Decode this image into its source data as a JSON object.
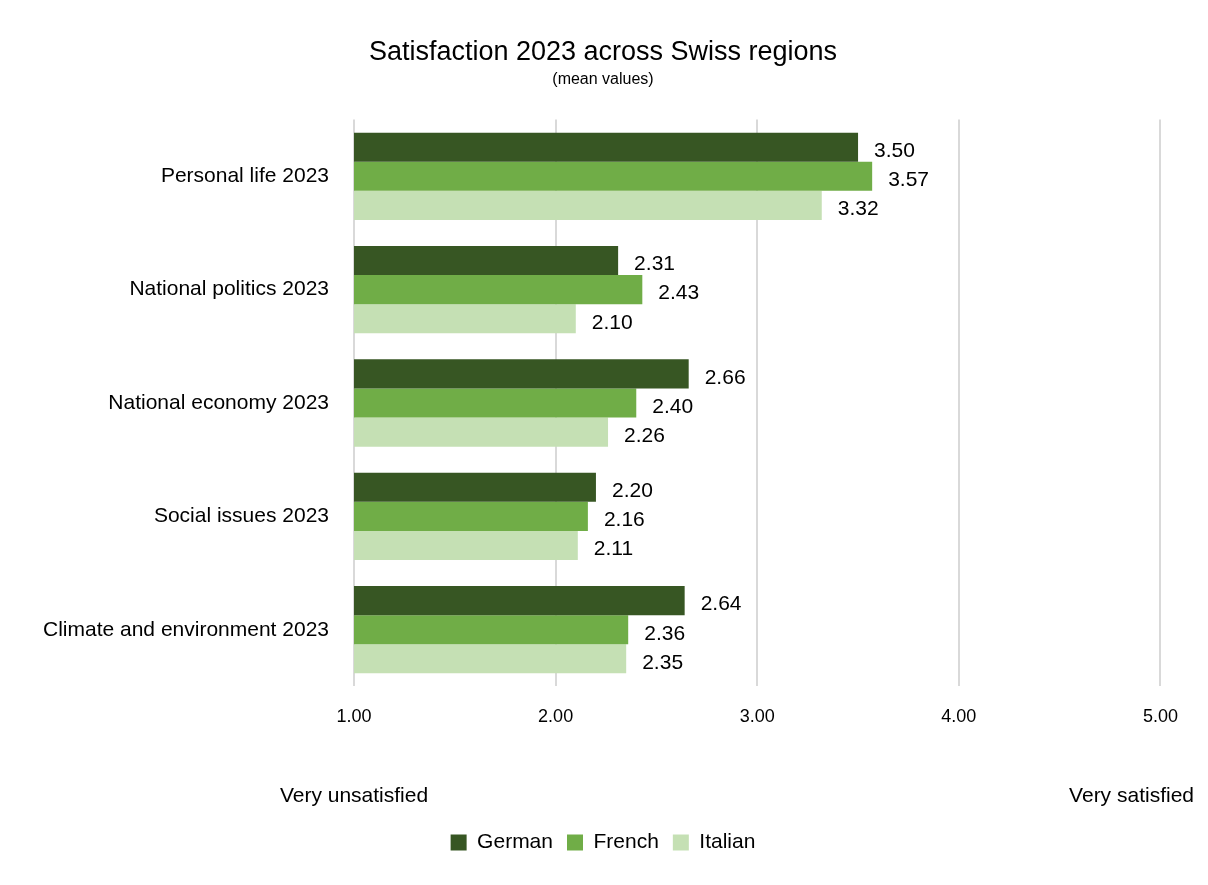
{
  "chart_data": {
    "type": "bar",
    "orientation": "horizontal",
    "title": "Satisfaction 2023 across Swiss regions",
    "subtitle": "(mean values)",
    "categories": [
      "Personal life 2023",
      "National politics 2023",
      "National economy 2023",
      "Social issues 2023",
      "Climate and environment 2023"
    ],
    "series": [
      {
        "name": "German",
        "color": "#375623",
        "values": [
          3.5,
          2.31,
          2.66,
          2.2,
          2.64
        ],
        "value_labels": [
          "3.50",
          "2.31",
          "2.66",
          "2.20",
          "2.64"
        ]
      },
      {
        "name": "French",
        "color": "#70ad47",
        "values": [
          3.57,
          2.43,
          2.4,
          2.16,
          2.36
        ],
        "value_labels": [
          "3.57",
          "2.43",
          "2.40",
          "2.16",
          "2.36"
        ]
      },
      {
        "name": "Italian",
        "color": "#c5e0b4",
        "values": [
          3.32,
          2.1,
          2.26,
          2.11,
          2.35
        ],
        "value_labels": [
          "3.32",
          "2.10",
          "2.26",
          "2.11",
          "2.35"
        ]
      }
    ],
    "xlim": [
      1,
      5
    ],
    "xticks": [
      {
        "value": 1,
        "label": "1.00"
      },
      {
        "value": 2,
        "label": "2.00"
      },
      {
        "value": 3,
        "label": "3.00"
      },
      {
        "value": 4,
        "label": "4.00"
      },
      {
        "value": 5,
        "label": "5.00"
      }
    ],
    "annotations": [
      "Very unsatisfied",
      "Very satisfied"
    ],
    "grid": "x",
    "legend": "bottom"
  }
}
